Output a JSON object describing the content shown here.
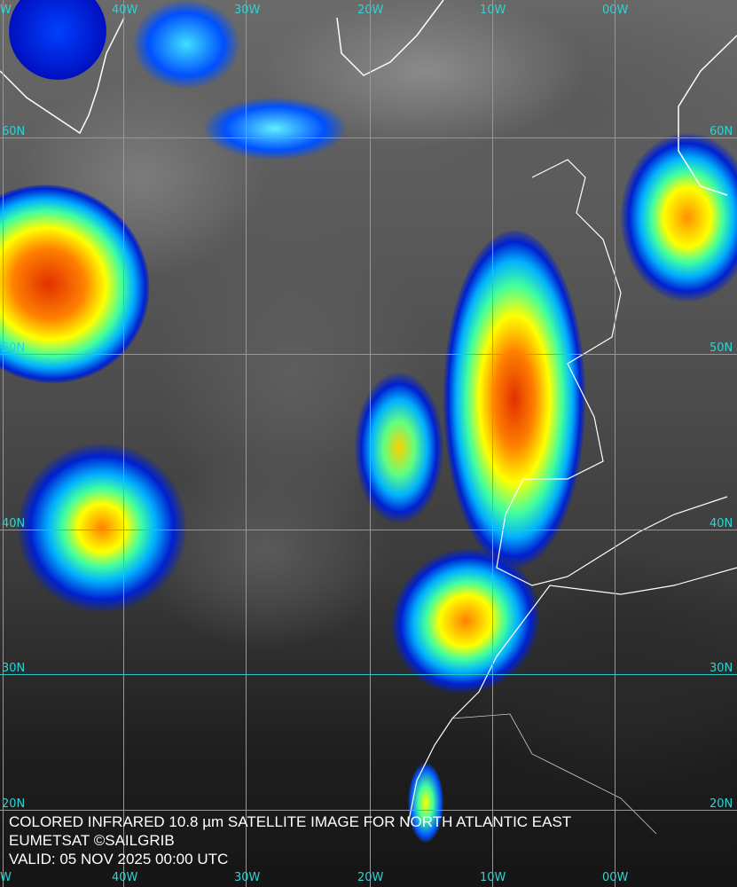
{
  "caption": {
    "line1": "COLORED INFRARED 10.8 µm SATELLITE IMAGE FOR NORTH ATLANTIC EAST",
    "line2": "EUMETSAT ©SAILGRIB",
    "line3": "VALID:  05 NOV 2025 00:00 UTC"
  },
  "longitude_labels": [
    "W",
    "40W",
    "30W",
    "20W",
    "10W",
    "00W"
  ],
  "latitude_labels": [
    "60N",
    "50N",
    "40N",
    "30N",
    "20N"
  ],
  "colors": {
    "grid": "#27c7c7",
    "coastline": "#ffffff",
    "cold_cloud_scale": [
      "#0010c0",
      "#0060ff",
      "#00d0ff",
      "#60ff80",
      "#ffff00",
      "#ff8000",
      "#e02000"
    ]
  }
}
